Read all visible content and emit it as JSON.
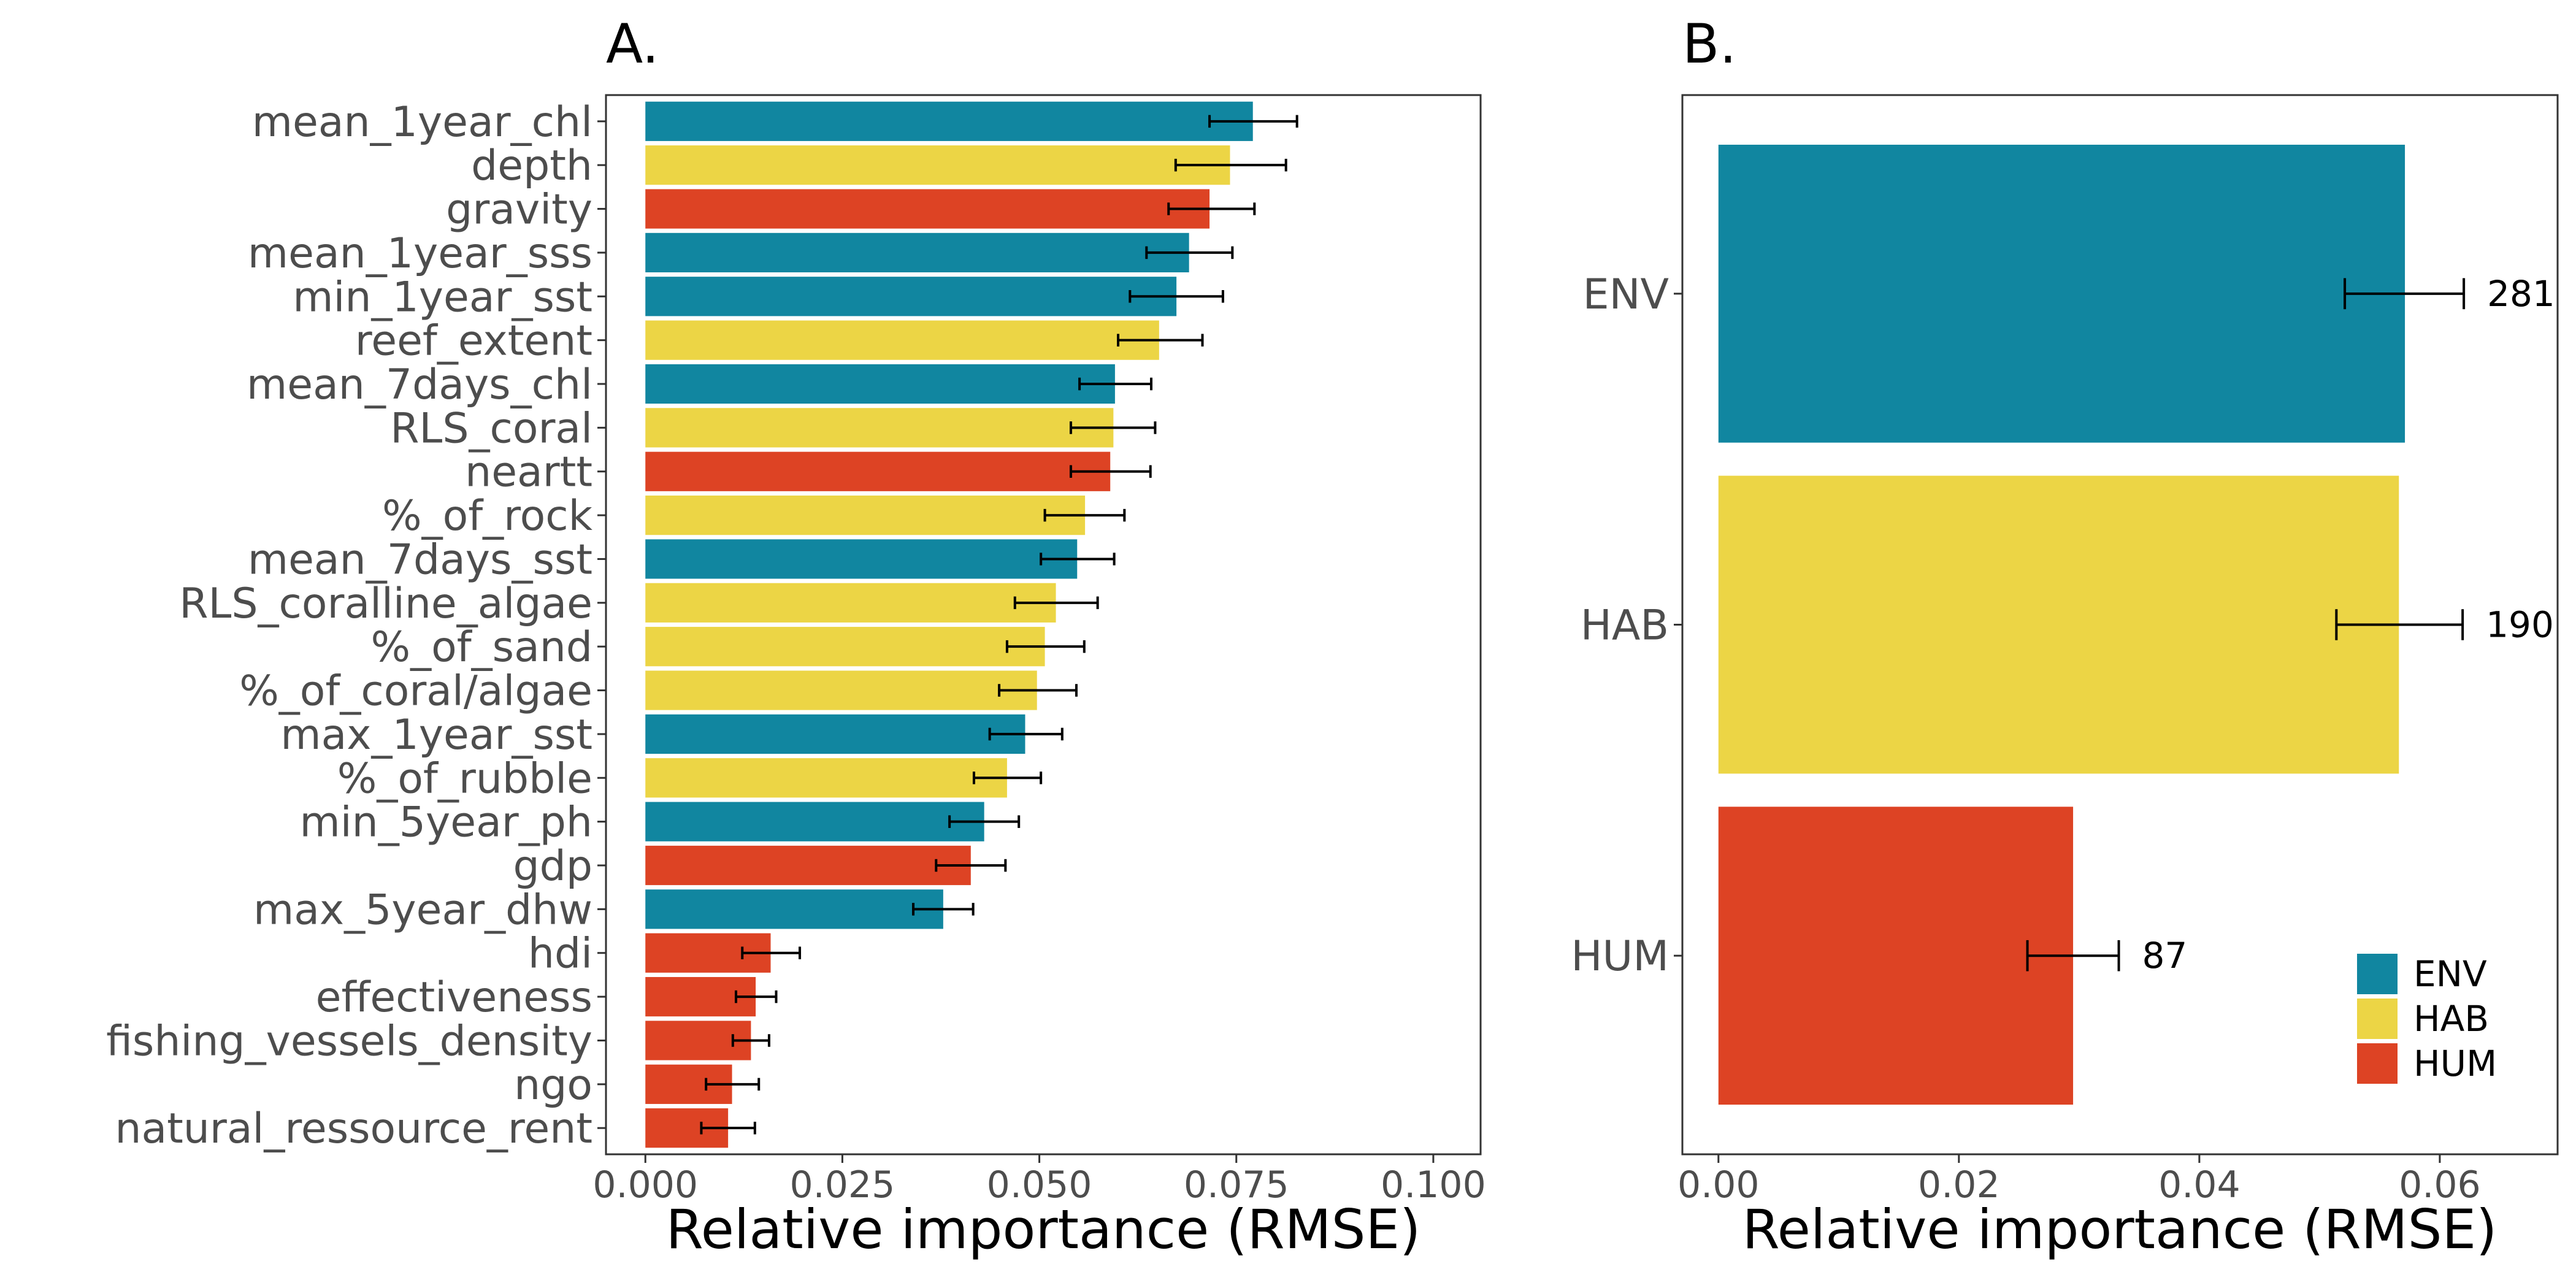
{
  "colors": {
    "ENV": "#1186a0",
    "HAB": "#ecd545",
    "HUM": "#dd4324",
    "axis": "#4d4d4d",
    "panel_border": "#333333"
  },
  "chart_data": [
    {
      "panel": "A.",
      "type": "bar",
      "orientation": "horizontal",
      "title": "A.",
      "xlabel": "Relative importance (RMSE)",
      "ylabel": "",
      "xlim": [
        -0.005,
        0.106
      ],
      "xticks": [
        0.0,
        0.025,
        0.05,
        0.075,
        0.1
      ],
      "xtick_labels": [
        "0.000",
        "0.025",
        "0.050",
        "0.075",
        "0.100"
      ],
      "grid": false,
      "bars": [
        {
          "label": "mean_1year_chl",
          "group": "ENV",
          "value": 0.0771,
          "err_low": 0.0716,
          "err_high": 0.0827
        },
        {
          "label": "depth",
          "group": "HAB",
          "value": 0.0742,
          "err_low": 0.0673,
          "err_high": 0.0813
        },
        {
          "label": "gravity",
          "group": "HUM",
          "value": 0.0716,
          "err_low": 0.0664,
          "err_high": 0.0773
        },
        {
          "label": "mean_1year_sss",
          "group": "ENV",
          "value": 0.069,
          "err_low": 0.0636,
          "err_high": 0.0745
        },
        {
          "label": "min_1year_sst",
          "group": "ENV",
          "value": 0.0674,
          "err_low": 0.0615,
          "err_high": 0.0733
        },
        {
          "label": "reef_extent",
          "group": "HAB",
          "value": 0.0652,
          "err_low": 0.06,
          "err_high": 0.0707
        },
        {
          "label": "mean_7days_chl",
          "group": "ENV",
          "value": 0.0596,
          "err_low": 0.0551,
          "err_high": 0.0642
        },
        {
          "label": "RLS_coral",
          "group": "HAB",
          "value": 0.0594,
          "err_low": 0.054,
          "err_high": 0.0647
        },
        {
          "label": "neartt",
          "group": "HUM",
          "value": 0.059,
          "err_low": 0.054,
          "err_high": 0.0641
        },
        {
          "label": "%_of_rock",
          "group": "HAB",
          "value": 0.0558,
          "err_low": 0.0507,
          "err_high": 0.0608
        },
        {
          "label": "mean_7days_sst",
          "group": "ENV",
          "value": 0.0548,
          "err_low": 0.0502,
          "err_high": 0.0595
        },
        {
          "label": "RLS_coralline_algae",
          "group": "HAB",
          "value": 0.0521,
          "err_low": 0.0469,
          "err_high": 0.0574
        },
        {
          "label": "%_of_sand",
          "group": "HAB",
          "value": 0.0507,
          "err_low": 0.0459,
          "err_high": 0.0557
        },
        {
          "label": "%_of_coral/algae",
          "group": "HAB",
          "value": 0.0497,
          "err_low": 0.0449,
          "err_high": 0.0547
        },
        {
          "label": "max_1year_sst",
          "group": "ENV",
          "value": 0.0482,
          "err_low": 0.0437,
          "err_high": 0.0529
        },
        {
          "label": "%_of_rubble",
          "group": "HAB",
          "value": 0.0459,
          "err_low": 0.0417,
          "err_high": 0.0502
        },
        {
          "label": "min_5year_ph",
          "group": "ENV",
          "value": 0.043,
          "err_low": 0.0386,
          "err_high": 0.0474
        },
        {
          "label": "gdp",
          "group": "HUM",
          "value": 0.0413,
          "err_low": 0.0369,
          "err_high": 0.0457
        },
        {
          "label": "max_5year_dhw",
          "group": "ENV",
          "value": 0.0378,
          "err_low": 0.034,
          "err_high": 0.0416
        },
        {
          "label": "hdi",
          "group": "HUM",
          "value": 0.0159,
          "err_low": 0.0123,
          "err_high": 0.0196
        },
        {
          "label": "effectiveness",
          "group": "HUM",
          "value": 0.014,
          "err_low": 0.0115,
          "err_high": 0.0166
        },
        {
          "label": "fishing_vessels_density",
          "group": "HUM",
          "value": 0.0134,
          "err_low": 0.0111,
          "err_high": 0.0157
        },
        {
          "label": "ngo",
          "group": "HUM",
          "value": 0.011,
          "err_low": 0.0077,
          "err_high": 0.0144
        },
        {
          "label": "natural_ressource_rent",
          "group": "HUM",
          "value": 0.0105,
          "err_low": 0.0071,
          "err_high": 0.0139
        }
      ]
    },
    {
      "panel": "B.",
      "type": "bar",
      "orientation": "horizontal",
      "title": "B.",
      "xlabel": "Relative importance (RMSE)",
      "ylabel": "",
      "xlim": [
        -0.003,
        0.0698
      ],
      "xticks": [
        0.0,
        0.02,
        0.04,
        0.06
      ],
      "xtick_labels": [
        "0.00",
        "0.02",
        "0.04",
        "0.06"
      ],
      "grid": false,
      "legend": {
        "placement": "bottom-right",
        "entries": [
          "ENV",
          "HAB",
          "HUM"
        ]
      },
      "bars": [
        {
          "label": "ENV",
          "group": "ENV",
          "value": 0.0571,
          "err_low": 0.0521,
          "err_high": 0.062,
          "annotation": "281"
        },
        {
          "label": "HAB",
          "group": "HAB",
          "value": 0.0566,
          "err_low": 0.0514,
          "err_high": 0.0619,
          "annotation": "190"
        },
        {
          "label": "HUM",
          "group": "HUM",
          "value": 0.0295,
          "err_low": 0.0257,
          "err_high": 0.0333,
          "annotation": "87"
        }
      ]
    }
  ]
}
